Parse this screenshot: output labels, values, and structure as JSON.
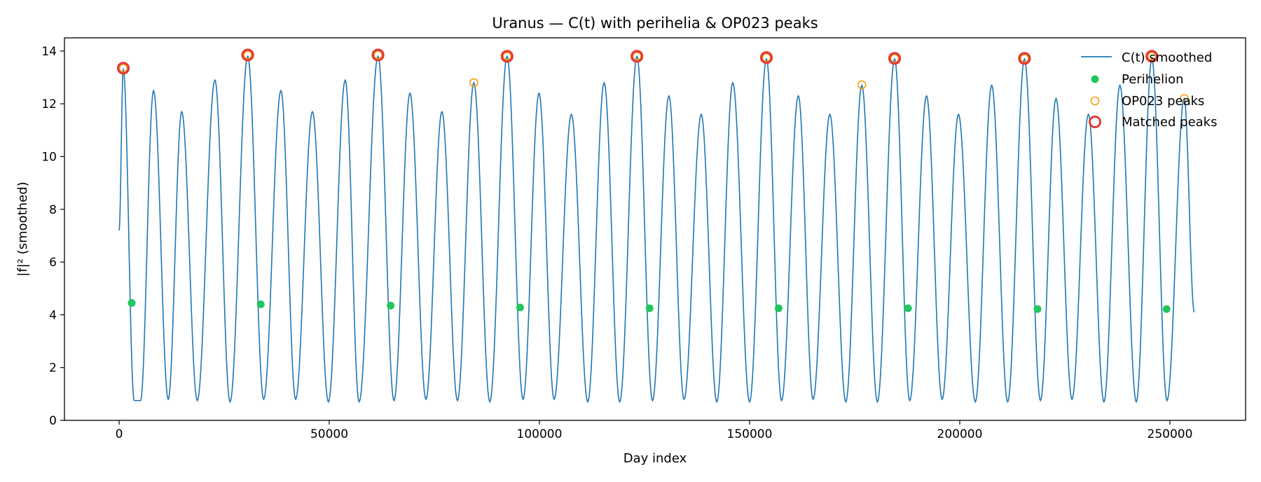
{
  "colors": {
    "line": "#1f77b4",
    "perihelion": "#22c55e",
    "op023": "#f59e0b",
    "matched": "#e53935",
    "axis": "#000000"
  },
  "chart_data": {
    "type": "line",
    "title": "Uranus — C(t) with perihelia & OP023 peaks",
    "xlabel": "Day index",
    "ylabel": "|f|² (smoothed)",
    "xlim": [
      -13000,
      268000
    ],
    "ylim": [
      0,
      14.5
    ],
    "xticks": [
      0,
      50000,
      100000,
      150000,
      200000,
      250000
    ],
    "xtick_labels": [
      "0",
      "50000",
      "100000",
      "150000",
      "200000",
      "250000"
    ],
    "yticks": [
      0,
      2,
      4,
      6,
      8,
      10,
      12,
      14
    ],
    "ytick_labels": [
      "0",
      "2",
      "4",
      "6",
      "8",
      "10",
      "12",
      "14"
    ],
    "grid": false,
    "legend_position": "top-right",
    "legend": [
      "C(t) smoothed",
      "Perihelion",
      "OP023 peaks",
      "Matched peaks"
    ],
    "series": [
      {
        "name": "C(t) smoothed",
        "kind": "line",
        "x": [
          0,
          1000,
          3600,
          5100,
          8200,
          11700,
          14900,
          18600,
          22800,
          26400,
          30600,
          34400,
          38500,
          42000,
          46000,
          49800,
          53800,
          57100,
          61600,
          65400,
          69200,
          73000,
          76800,
          80500,
          84400,
          88200,
          92300,
          96100,
          99900,
          103500,
          107600,
          111500,
          115400,
          119100,
          123200,
          126900,
          130800,
          134400,
          138500,
          142200,
          146000,
          150000,
          154000,
          157600,
          161600,
          165100,
          169100,
          172900,
          176700,
          180400,
          184500,
          188100,
          192100,
          195800,
          199700,
          203700,
          207600,
          211400,
          215400,
          219200,
          222900,
          226700,
          230600,
          234300,
          238100,
          242000,
          245700,
          249300,
          253400,
          255800
        ],
        "y": [
          7.2,
          13.3,
          0.75,
          0.75,
          12.5,
          0.8,
          11.7,
          0.75,
          12.9,
          0.7,
          13.8,
          0.8,
          12.5,
          0.8,
          11.7,
          0.7,
          12.9,
          0.7,
          13.8,
          0.75,
          12.4,
          0.8,
          11.7,
          0.75,
          12.8,
          0.7,
          13.8,
          0.8,
          12.4,
          0.8,
          11.6,
          0.7,
          12.8,
          0.7,
          13.8,
          0.75,
          12.3,
          0.8,
          11.6,
          0.7,
          12.8,
          0.7,
          13.7,
          0.75,
          12.3,
          0.8,
          11.6,
          0.7,
          12.7,
          0.7,
          13.7,
          0.75,
          12.3,
          0.8,
          11.6,
          0.7,
          12.7,
          0.7,
          13.7,
          0.75,
          12.2,
          0.8,
          11.6,
          0.7,
          12.7,
          0.7,
          13.7,
          0.75,
          12.2,
          4.1
        ]
      },
      {
        "name": "Perihelion",
        "kind": "scatter",
        "x": [
          3000,
          33700,
          64600,
          95400,
          126200,
          156900,
          187700,
          218500,
          249200
        ],
        "y": [
          4.45,
          4.4,
          4.35,
          4.28,
          4.25,
          4.25,
          4.25,
          4.22,
          4.22
        ]
      },
      {
        "name": "OP023 peaks",
        "kind": "scatter",
        "x": [
          1000,
          30600,
          61600,
          84400,
          92300,
          123200,
          154000,
          176700,
          184500,
          215400,
          245700,
          253400
        ],
        "y": [
          13.35,
          13.85,
          13.85,
          12.8,
          13.8,
          13.8,
          13.75,
          12.72,
          13.72,
          13.72,
          13.8,
          12.2
        ]
      },
      {
        "name": "Matched peaks",
        "kind": "scatter",
        "x": [
          1000,
          30600,
          61600,
          92300,
          123200,
          154000,
          184500,
          215400,
          245700
        ],
        "y": [
          13.35,
          13.85,
          13.85,
          13.8,
          13.8,
          13.75,
          13.72,
          13.72,
          13.8
        ]
      }
    ]
  }
}
